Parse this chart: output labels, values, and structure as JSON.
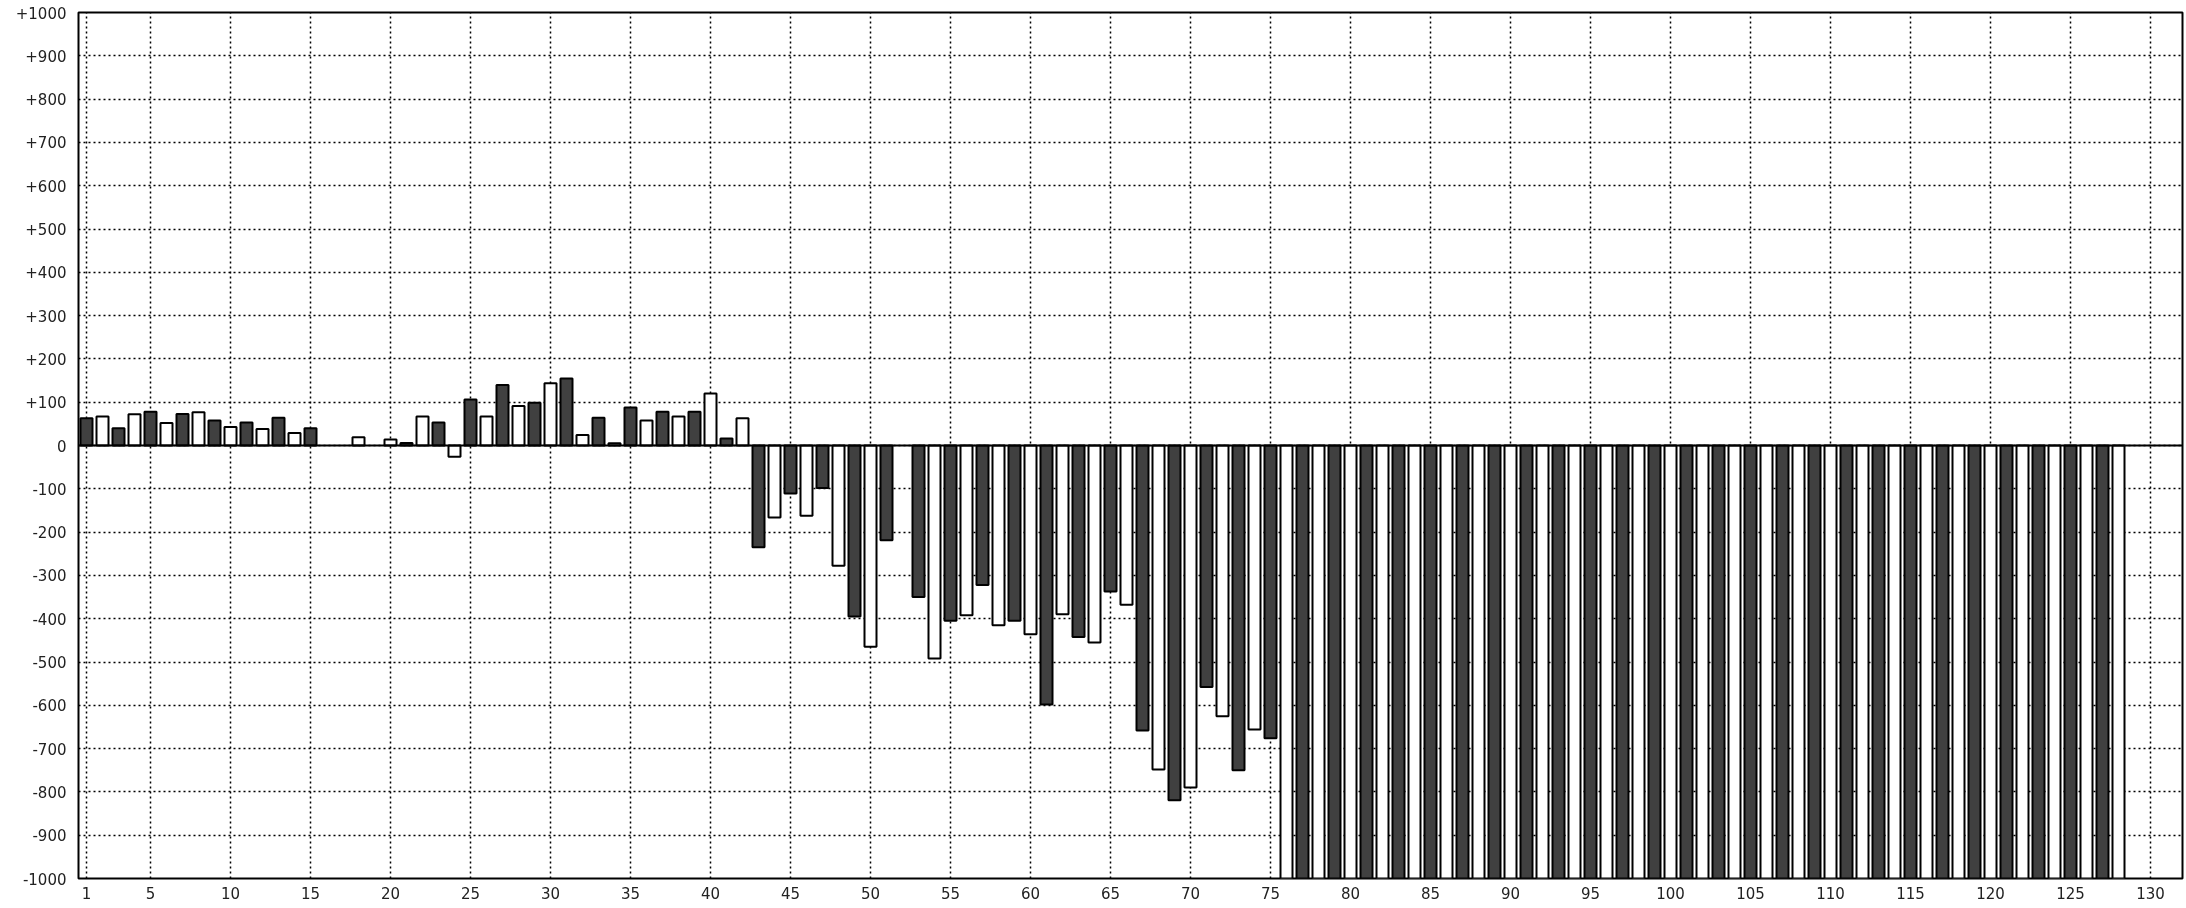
{
  "chart_data": {
    "type": "bar",
    "xlim": [
      0.5,
      132
    ],
    "ylim": [
      -1000,
      1000
    ],
    "xticks": [
      1,
      5,
      10,
      15,
      20,
      25,
      30,
      35,
      40,
      45,
      50,
      55,
      60,
      65,
      70,
      75,
      80,
      85,
      90,
      95,
      100,
      105,
      110,
      115,
      120,
      125,
      130
    ],
    "yticks": [
      {
        "value": -1000,
        "label": "-1000"
      },
      {
        "value": -900,
        "label": "-900"
      },
      {
        "value": -800,
        "label": "-800"
      },
      {
        "value": -700,
        "label": "-700"
      },
      {
        "value": -600,
        "label": "-600"
      },
      {
        "value": -500,
        "label": "-500"
      },
      {
        "value": -400,
        "label": "-400"
      },
      {
        "value": -300,
        "label": "-300"
      },
      {
        "value": -200,
        "label": "-200"
      },
      {
        "value": -100,
        "label": "-100"
      },
      0,
      {
        "value": 100,
        "label": "+100"
      },
      {
        "value": 200,
        "label": "+200"
      },
      {
        "value": 300,
        "label": "+300"
      },
      {
        "value": 400,
        "label": "+400"
      },
      {
        "value": 500,
        "label": "+500"
      },
      {
        "value": 600,
        "label": "+600"
      },
      {
        "value": 700,
        "label": "+700"
      },
      {
        "value": 800,
        "label": "+800"
      },
      {
        "value": 900,
        "label": "+900"
      },
      {
        "value": 1000,
        "label": "+1000"
      }
    ],
    "grid": true,
    "series": [
      {
        "color": "#404040",
        "x": [
          1,
          3,
          5,
          7,
          9,
          11,
          13,
          15,
          17,
          19,
          21,
          23,
          25,
          27,
          29,
          31,
          33,
          35,
          37,
          39,
          41,
          43,
          45,
          47,
          49,
          51,
          53,
          55,
          57,
          59,
          61,
          63,
          65,
          67,
          69,
          71,
          73,
          75,
          77,
          79,
          81,
          83,
          85,
          87,
          89,
          91,
          93,
          95,
          97,
          99,
          101,
          103,
          105,
          107,
          109,
          111,
          113,
          115,
          117,
          119,
          121,
          123,
          125,
          127
        ],
        "values": [
          63,
          40,
          78,
          73,
          58,
          53,
          64,
          40,
          null,
          null,
          6,
          53,
          106,
          140,
          99,
          155,
          64,
          88,
          78,
          78,
          16,
          -235,
          -111,
          -98,
          -395,
          -219,
          -350,
          -405,
          -322,
          -405,
          -598,
          -442,
          -337,
          -658,
          -819,
          -558,
          -750,
          -676,
          -1000,
          -1000,
          -1000,
          -1000,
          -1000,
          -1000,
          -1000,
          -1000,
          -1000,
          -1000,
          -1000,
          -1000,
          -1000,
          -1000,
          -1000,
          -1000,
          -1000,
          -1000,
          -1000,
          -1000,
          -1000,
          -1000,
          -1000,
          -1000,
          -1000,
          -1000
        ]
      },
      {
        "color": "#ffffff",
        "x": [
          2,
          4,
          6,
          8,
          10,
          12,
          14,
          16,
          18,
          20,
          22,
          24,
          26,
          28,
          30,
          32,
          34,
          36,
          38,
          40,
          42,
          44,
          46,
          48,
          50,
          52,
          54,
          56,
          58,
          60,
          62,
          64,
          66,
          68,
          70,
          72,
          74,
          76,
          78,
          80,
          82,
          84,
          86,
          88,
          90,
          92,
          94,
          96,
          98,
          100,
          102,
          104,
          106,
          108,
          110,
          112,
          114,
          116,
          118,
          120,
          122,
          124,
          126,
          128
        ],
        "values": [
          67,
          72,
          52,
          77,
          43,
          38,
          29,
          null,
          19,
          14,
          67,
          -26,
          67,
          91,
          144,
          24,
          5,
          58,
          67,
          120,
          63,
          -166,
          -162,
          -278,
          -465,
          null,
          -492,
          -392,
          -415,
          -436,
          -390,
          -455,
          -368,
          -748,
          -790,
          -625,
          -656,
          -1000,
          -1000,
          -1000,
          -1000,
          -1000,
          -1000,
          -1000,
          -1000,
          -1000,
          -1000,
          -1000,
          -1000,
          -1000,
          -1000,
          -1000,
          -1000,
          -1000,
          -1000,
          -1000,
          -1000,
          -1000,
          -1000,
          -1000,
          -1000,
          -1000,
          -1000,
          -1000
        ]
      }
    ]
  }
}
